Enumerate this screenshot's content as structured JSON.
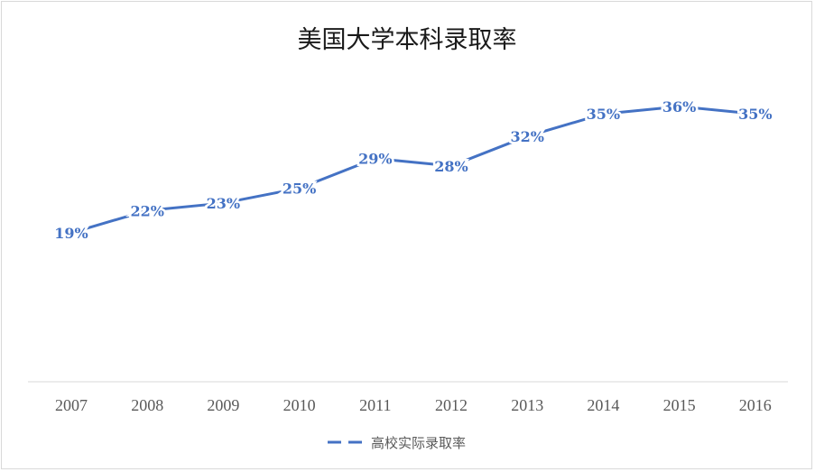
{
  "chart_data": {
    "type": "line",
    "title": "美国大学本科录取率",
    "categories": [
      "2007",
      "2008",
      "2009",
      "2010",
      "2011",
      "2012",
      "2013",
      "2014",
      "2015",
      "2016"
    ],
    "series": [
      {
        "name": "高校实际录取率",
        "values": [
          19,
          22,
          23,
          25,
          29,
          28,
          32,
          35,
          36,
          35
        ],
        "labels": [
          "19%",
          "22%",
          "23%",
          "25%",
          "29%",
          "28%",
          "32%",
          "35%",
          "36%",
          "35%"
        ],
        "color": "#4472c4",
        "line_style": "solid"
      }
    ],
    "xlabel": "",
    "ylabel": "",
    "y_axis_visible": false,
    "grid": false,
    "legend": "bottom",
    "legend_marker_style": "dashed"
  }
}
